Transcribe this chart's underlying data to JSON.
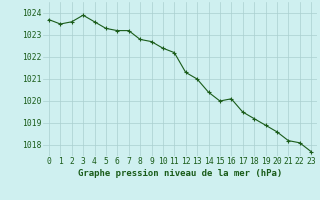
{
  "x": [
    0,
    1,
    2,
    3,
    4,
    5,
    6,
    7,
    8,
    9,
    10,
    11,
    12,
    13,
    14,
    15,
    16,
    17,
    18,
    19,
    20,
    21,
    22,
    23
  ],
  "y": [
    1023.7,
    1023.5,
    1023.6,
    1023.9,
    1023.6,
    1023.3,
    1023.2,
    1023.2,
    1022.8,
    1022.7,
    1022.4,
    1022.2,
    1021.3,
    1021.0,
    1020.4,
    1020.0,
    1020.1,
    1019.5,
    1019.2,
    1018.9,
    1018.6,
    1018.2,
    1018.1,
    1017.7
  ],
  "line_color": "#1a5c1a",
  "marker": "+",
  "marker_color": "#1a5c1a",
  "bg_color": "#cff0f0",
  "grid_color": "#aacfcf",
  "xlabel": "Graphe pression niveau de la mer (hPa)",
  "xlabel_color": "#1a5c1a",
  "tick_color": "#1a5c1a",
  "ylim_min": 1017.5,
  "ylim_max": 1024.5,
  "yticks": [
    1018,
    1019,
    1020,
    1021,
    1022,
    1023,
    1024
  ],
  "xticks": [
    0,
    1,
    2,
    3,
    4,
    5,
    6,
    7,
    8,
    9,
    10,
    11,
    12,
    13,
    14,
    15,
    16,
    17,
    18,
    19,
    20,
    21,
    22,
    23
  ],
  "xlabel_fontsize": 6.5,
  "tick_fontsize": 5.8,
  "linewidth": 0.8,
  "markersize": 2.5,
  "markeredgewidth": 0.8
}
